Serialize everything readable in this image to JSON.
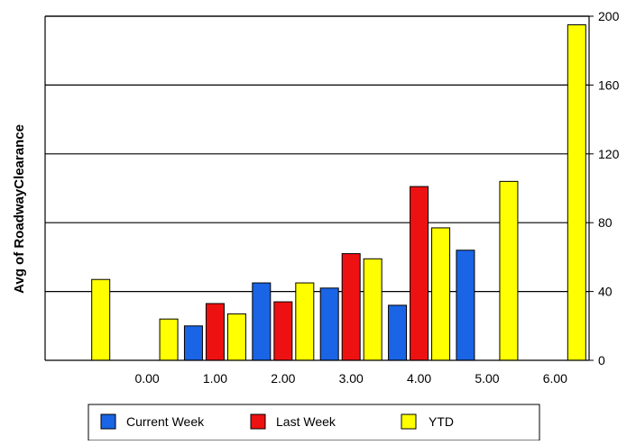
{
  "chart_data": {
    "type": "bar",
    "ylabel": "Avg of RoadwayClearance",
    "xlabel": "",
    "y_axis_side": "right",
    "ylim": [
      0,
      200
    ],
    "y_ticks": [
      0,
      40,
      80,
      120,
      160,
      200
    ],
    "y_tick_labels": [
      "0",
      "40",
      "80",
      "120",
      "160",
      "200"
    ],
    "grid": "horizontal",
    "categories": [
      "",
      "0.00",
      "1.00",
      "2.00",
      "3.00",
      "4.00",
      "5.00",
      "6.00"
    ],
    "series": [
      {
        "name": "Current Week",
        "color": "#1a64e6",
        "values": [
          null,
          null,
          20,
          45,
          42,
          32,
          64,
          null
        ]
      },
      {
        "name": "Last Week",
        "color": "#ee1111",
        "values": [
          null,
          null,
          33,
          34,
          62,
          101,
          null,
          null
        ]
      },
      {
        "name": "YTD",
        "color": "#ffff00",
        "values": [
          47,
          24,
          27,
          45,
          59,
          77,
          104,
          195
        ]
      }
    ],
    "legend_position": "bottom"
  }
}
